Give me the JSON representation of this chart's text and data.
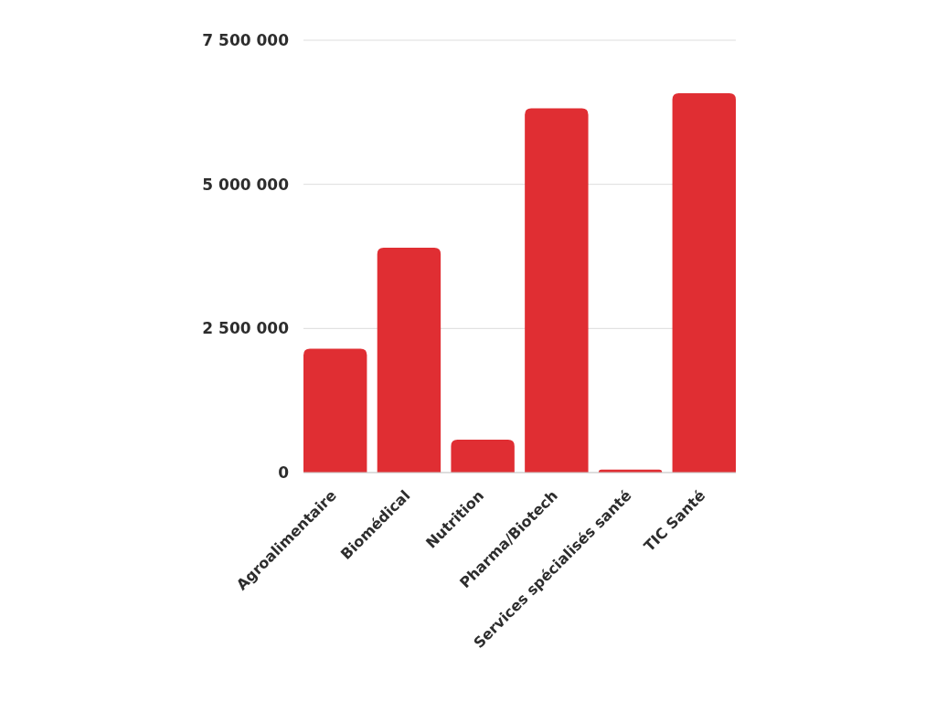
{
  "chart_data": {
    "type": "bar",
    "categories": [
      "Agroalimentaire",
      "Biomédical",
      "Nutrition",
      "Pharma/Biotech",
      "Services spécialisés santé",
      "TIC Santé"
    ],
    "values": [
      2150000,
      3900000,
      570000,
      6320000,
      50000,
      6580000
    ],
    "color": "#e02e33",
    "ylim": [
      0,
      7500000
    ],
    "yticks": [
      0,
      {
        "value": 2500000,
        "label": "2 500 000"
      },
      {
        "value": 5000000,
        "label": "5 000 000"
      },
      {
        "value": 7500000,
        "label": "7 500 000"
      }
    ],
    "grid": "y"
  }
}
